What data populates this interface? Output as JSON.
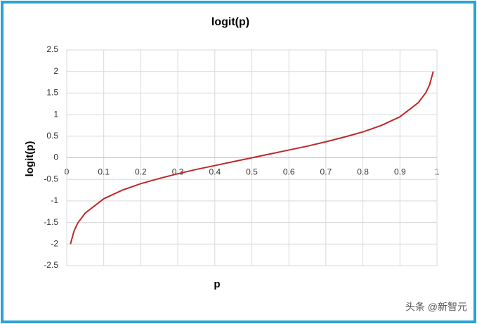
{
  "chart_data": {
    "type": "line",
    "title": "logit(p)",
    "x_label": "p",
    "y_label": "logit(p)",
    "x": [
      0.01,
      0.02,
      0.03,
      0.05,
      0.1,
      0.15,
      0.2,
      0.25,
      0.3,
      0.35,
      0.4,
      0.45,
      0.5,
      0.55,
      0.6,
      0.65,
      0.7,
      0.75,
      0.8,
      0.85,
      0.9,
      0.95,
      0.97,
      0.98,
      0.99
    ],
    "series": [
      {
        "name": "logit(p)",
        "color": "#c0282a",
        "values": [
          -2.0,
          -1.69,
          -1.51,
          -1.28,
          -0.95,
          -0.75,
          -0.6,
          -0.48,
          -0.37,
          -0.27,
          -0.18,
          -0.09,
          0,
          0.09,
          0.18,
          0.27,
          0.37,
          0.48,
          0.6,
          0.75,
          0.95,
          1.28,
          1.51,
          1.69,
          2.0
        ]
      }
    ],
    "xlim": [
      0,
      1
    ],
    "xticks": [
      0,
      0.1,
      0.2,
      0.3,
      0.4,
      0.5,
      0.6,
      0.7,
      0.8,
      0.9,
      1
    ],
    "ylim": [
      -2.5,
      2.5
    ],
    "yticks": [
      -2.5,
      -2,
      -1.5,
      -1,
      -0.5,
      0,
      0.5,
      1,
      1.5,
      2,
      2.5
    ],
    "grid": true
  },
  "watermark": "头条 @新智元"
}
